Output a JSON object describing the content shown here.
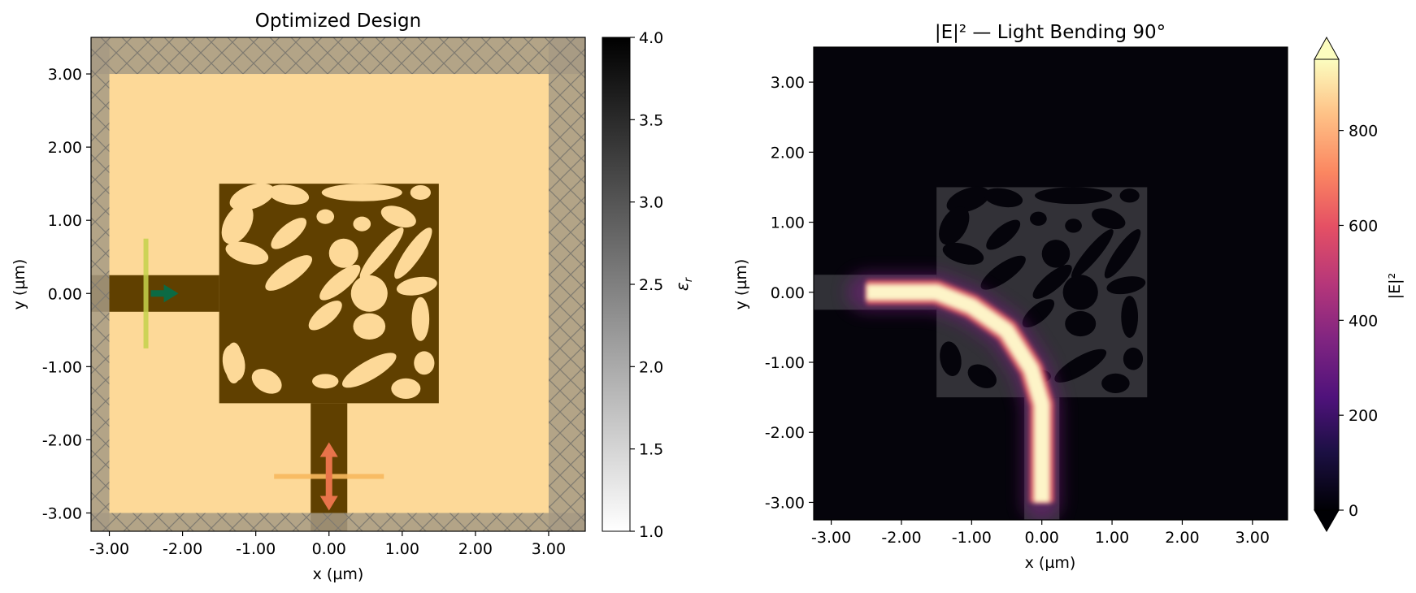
{
  "chart_data": [
    {
      "type": "heatmap",
      "title": "Optimized Design",
      "xlabel": "x (µm)",
      "ylabel": "y (µm)",
      "xlim": [
        -3.25,
        3.5
      ],
      "ylim": [
        -3.25,
        3.5
      ],
      "x_ticks": [
        -3.0,
        -2.0,
        -1.0,
        0.0,
        1.0,
        2.0,
        3.0
      ],
      "y_ticks": [
        -3.0,
        -2.0,
        -1.0,
        0.0,
        1.0,
        2.0,
        3.0
      ],
      "x_tick_labels": [
        "-3.00",
        "-2.00",
        "-1.00",
        "0.00",
        "1.00",
        "2.00",
        "3.00"
      ],
      "y_tick_labels": [
        "-3.00",
        "-2.00",
        "-1.00",
        "0.00",
        "1.00",
        "2.00",
        "3.00"
      ],
      "colorbar": {
        "label": "εr",
        "range": [
          1.0,
          4.0
        ],
        "ticks": [
          1.0,
          1.5,
          2.0,
          2.5,
          3.0,
          3.5,
          4.0
        ],
        "tick_labels": [
          "1.0",
          "1.5",
          "2.0",
          "2.5",
          "3.0",
          "3.5",
          "4.0"
        ]
      },
      "background_material": {
        "value": 1.0,
        "color": "#fdd998"
      },
      "core_material": {
        "value": 4.0,
        "color": "#604000"
      },
      "structures": [
        {
          "name": "input waveguide",
          "x": [
            -3.25,
            -1.5
          ],
          "y": [
            -0.25,
            0.25
          ]
        },
        {
          "name": "output waveguide",
          "x": [
            -0.25,
            0.25
          ],
          "y": [
            -3.25,
            -1.5
          ]
        },
        {
          "name": "design region",
          "x": [
            -1.5,
            1.5
          ],
          "y": [
            -1.5,
            1.5
          ]
        }
      ],
      "pml_width": 0.25,
      "pml_color": "#a69a84",
      "source": {
        "x": -2.5,
        "y_range": [
          -0.75,
          0.75
        ],
        "direction": "+x",
        "color": "#c5d24c",
        "arrow_color": "#0b6a44"
      },
      "monitor": {
        "y": -2.5,
        "x_range": [
          -0.75,
          0.75
        ],
        "direction": "y",
        "color": "#f8b95f",
        "arrow_color": "#e8734a"
      }
    },
    {
      "type": "heatmap",
      "title": "|E|² — Light Bending 90°",
      "xlabel": "x (µm)",
      "ylabel": "y (µm)",
      "xlim": [
        -3.25,
        3.5
      ],
      "ylim": [
        -3.25,
        3.5
      ],
      "x_ticks": [
        -3.0,
        -2.0,
        -1.0,
        0.0,
        1.0,
        2.0,
        3.0
      ],
      "y_ticks": [
        -3.0,
        -2.0,
        -1.0,
        0.0,
        1.0,
        2.0,
        3.0
      ],
      "x_tick_labels": [
        "-3.00",
        "-2.00",
        "-1.00",
        "0.00",
        "1.00",
        "2.00",
        "3.00"
      ],
      "y_tick_labels": [
        "-3.00",
        "-2.00",
        "-1.00",
        "0.00",
        "1.00",
        "2.00",
        "3.00"
      ],
      "colorbar": {
        "label": "|E|²",
        "colormap": "magma",
        "range": [
          0,
          950
        ],
        "extend": "both",
        "ticks": [
          0,
          200,
          400,
          600,
          800
        ],
        "tick_labels": [
          "0",
          "200",
          "400",
          "600",
          "800"
        ]
      },
      "field_path": [
        [
          -2.5,
          0.0
        ],
        [
          -1.5,
          0.0
        ],
        [
          -1.0,
          -0.2
        ],
        [
          -0.5,
          -0.55
        ],
        [
          -0.15,
          -1.1
        ],
        [
          0.0,
          -1.6
        ],
        [
          0.0,
          -3.0
        ]
      ],
      "field_peak": 950
    }
  ]
}
